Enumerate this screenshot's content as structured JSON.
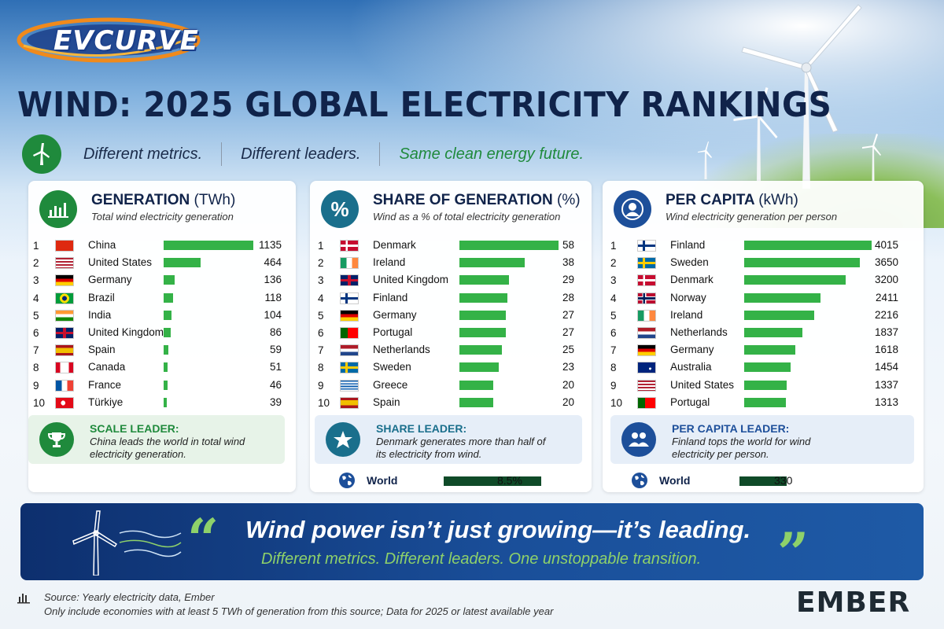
{
  "brand": {
    "logo": "EVCURVE"
  },
  "title": "WIND: 2025 GLOBAL ELECTRICITY RANKINGS",
  "tagline": [
    "Different metrics.",
    "Different leaders.",
    "Same clean energy future."
  ],
  "colors": {
    "bar": "#34b247",
    "world_bar": "#0f4a28",
    "green_icon": "#1f8a3c",
    "blue_icon": "#1d4f9a",
    "teal_icon": "#1a6f8c"
  },
  "panels": [
    {
      "title": "GENERATION",
      "unit": "(TWh)",
      "desc": "Total wind electricity generation",
      "icon": "bar-chart-icon",
      "leader_title": "SCALE LEADER:",
      "leader_text": "China leads the world in total wind electricity generation.",
      "leader_icon": "trophy-icon"
    },
    {
      "title": "SHARE OF GENERATION",
      "unit": "(%)",
      "desc": "Wind as a % of total electricity generation",
      "icon": "percent-icon",
      "leader_title": "SHARE LEADER:",
      "leader_text": "Denmark generates more than half of its electricity from wind.",
      "leader_icon": "star-icon",
      "world_label": "World",
      "world_value": "8.5%"
    },
    {
      "title": "PER CAPITA",
      "unit": "(kWh)",
      "desc": "Wind electricity generation per person",
      "icon": "person-icon",
      "leader_title": "PER CAPITA LEADER:",
      "leader_text": "Finland tops the world for wind electricity per person.",
      "leader_icon": "people-icon",
      "world_label": "World",
      "world_value": "330"
    }
  ],
  "chart_data": [
    {
      "type": "bar",
      "title": "GENERATION (TWh)",
      "categories": [
        "China",
        "United States",
        "Germany",
        "Brazil",
        "India",
        "United Kingdom",
        "Spain",
        "Canada",
        "France",
        "Türkiye"
      ],
      "flags": [
        "cn",
        "us",
        "de",
        "br",
        "in",
        "gb",
        "es",
        "ca",
        "fr",
        "tr"
      ],
      "values": [
        1135,
        464,
        136,
        118,
        104,
        86,
        59,
        51,
        46,
        39
      ],
      "labels": [
        "1135",
        "464",
        "136",
        "118",
        "104",
        "86",
        "59",
        "51",
        "46",
        "39"
      ],
      "ylim": [
        0,
        1135
      ]
    },
    {
      "type": "bar",
      "title": "SHARE OF GENERATION (%)",
      "categories": [
        "Denmark",
        "Ireland",
        "United Kingdom",
        "Finland",
        "Germany",
        "Portugal",
        "Netherlands",
        "Sweden",
        "Greece",
        "Spain"
      ],
      "flags": [
        "dk",
        "ie",
        "gb",
        "fi",
        "de",
        "pt",
        "nl",
        "se",
        "gr",
        "es"
      ],
      "values": [
        58,
        38,
        29,
        28,
        27,
        27,
        25,
        23,
        20,
        20
      ],
      "labels": [
        "58",
        "38",
        "29",
        "28",
        "27",
        "27",
        "25",
        "23",
        "20",
        "20"
      ],
      "world": 8.5,
      "ylim": [
        0,
        58
      ]
    },
    {
      "type": "bar",
      "title": "PER CAPITA (kWh)",
      "categories": [
        "Finland",
        "Sweden",
        "Denmark",
        "Norway",
        "Ireland",
        "Netherlands",
        "Germany",
        "Australia",
        "United States",
        "Portugal"
      ],
      "flags": [
        "fi",
        "se",
        "dk",
        "no",
        "ie",
        "nl",
        "de",
        "au",
        "us",
        "pt"
      ],
      "values": [
        4015,
        3650,
        3200,
        2411,
        2216,
        1837,
        1618,
        1454,
        1337,
        1313
      ],
      "labels": [
        "4015",
        "3650",
        "3200",
        "2411",
        "2216",
        "1837",
        "1618",
        "1454",
        "1337",
        "1313"
      ],
      "world": 330,
      "ylim": [
        0,
        4015
      ]
    }
  ],
  "quote": {
    "main": "Wind power isn’t just growing—it’s leading.",
    "sub": "Different metrics. Different leaders. One unstoppable transition.",
    "open": "“",
    "close": "”"
  },
  "footer": {
    "source": "Source: Yearly electricity data, Ember",
    "note": "Only include economies with at least 5 TWh of generation from this source; Data for 2025 or latest available year"
  },
  "ember_logo": "EMBER"
}
